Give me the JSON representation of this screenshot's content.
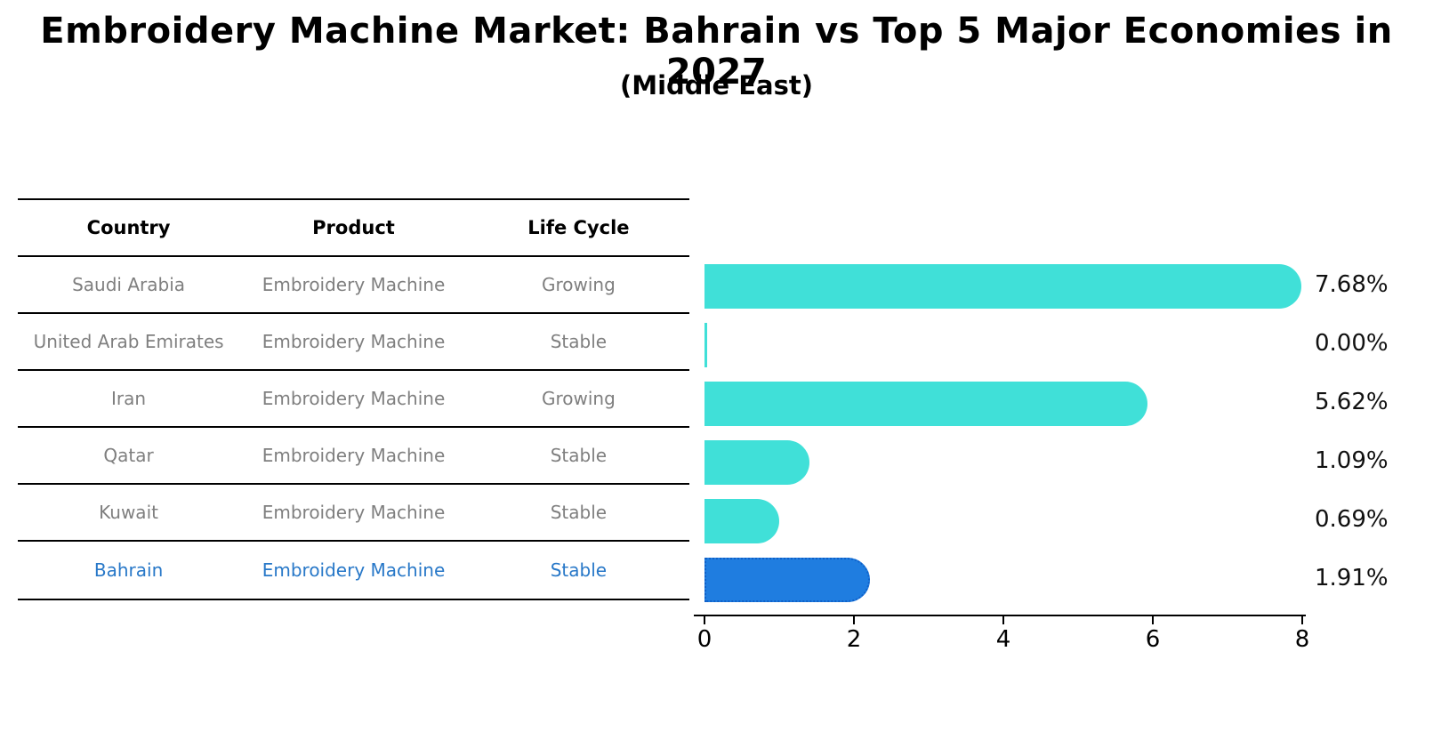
{
  "header": {
    "title": "Embroidery Machine Market: Bahrain vs Top 5 Major Economies in 2027",
    "subtitle": "(Middle East)"
  },
  "table": {
    "columns": [
      "Country",
      "Product",
      "Life Cycle"
    ],
    "rows": [
      {
        "country": "Saudi Arabia",
        "product": "Embroidery Machine",
        "life_cycle": "Growing",
        "highlight": false
      },
      {
        "country": "United Arab Emirates",
        "product": "Embroidery Machine",
        "life_cycle": "Stable",
        "highlight": false
      },
      {
        "country": "Iran",
        "product": "Embroidery Machine",
        "life_cycle": "Growing",
        "highlight": false
      },
      {
        "country": "Qatar",
        "product": "Embroidery Machine",
        "life_cycle": "Stable",
        "highlight": false
      },
      {
        "country": "Kuwait",
        "product": "Embroidery Machine",
        "life_cycle": "Stable",
        "highlight": false
      },
      {
        "country": "Bahrain",
        "product": "Embroidery Machine",
        "life_cycle": "Stable",
        "highlight": true
      }
    ]
  },
  "chart_data": {
    "type": "bar",
    "orientation": "horizontal",
    "title": "Embroidery Machine Market: Bahrain vs Top 5 Major Economies in 2027",
    "subtitle": "(Middle East)",
    "categories": [
      "Saudi Arabia",
      "United Arab Emirates",
      "Iran",
      "Qatar",
      "Kuwait",
      "Bahrain"
    ],
    "values": [
      7.68,
      0.0,
      5.62,
      1.09,
      0.69,
      1.91
    ],
    "value_labels": [
      "7.68%",
      "0.00%",
      "5.62%",
      "1.09%",
      "0.69%",
      "1.91%"
    ],
    "xlabel": "",
    "ylabel": "",
    "xlim": [
      0,
      8
    ],
    "x_ticks": [
      0,
      2,
      4,
      6,
      8
    ],
    "grid": false,
    "legend": false,
    "highlight_index": 5,
    "colors": {
      "bar": "#40e0d8",
      "highlight_bar": "#1f7de0",
      "highlight_border": "#1060c8",
      "value_label_text": "#111111",
      "table_text": "#7f7f7f",
      "highlight_text": "#2878c8"
    }
  }
}
